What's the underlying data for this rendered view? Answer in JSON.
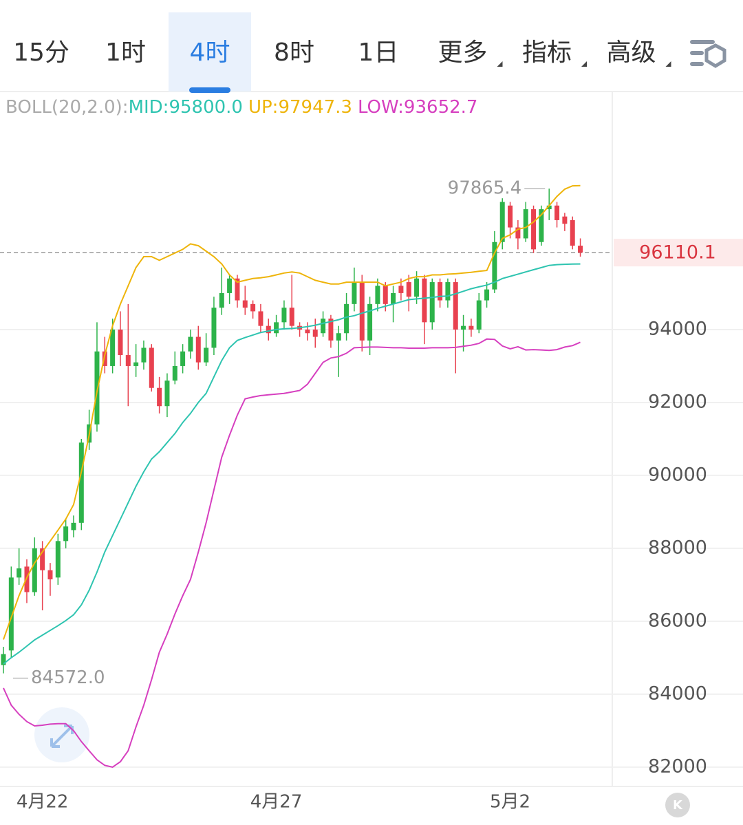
{
  "tabs": [
    "15分",
    "1时",
    "4时",
    "8时",
    "1日",
    "更多",
    "指标",
    "高级"
  ],
  "selected_tab": "4时",
  "chart_data": {
    "type": "candlestick",
    "indicator": "BOLL(20,2.0):",
    "open": [
      84800,
      85200,
      87200,
      87500,
      86800,
      88000,
      87400,
      87200,
      88200,
      88500,
      88700,
      90900,
      91400,
      93400,
      93000,
      94000,
      93300,
      93000,
      93100,
      93500,
      92400,
      91900,
      92600,
      93000,
      93400,
      93800,
      93100,
      93500,
      94600,
      95000,
      95400,
      94800,
      94700,
      94500,
      94100,
      93900,
      94200,
      94600,
      94100,
      94000,
      94000,
      93900,
      94300,
      93700,
      93900,
      94700,
      95300,
      93700,
      94700,
      95200,
      94700,
      95200,
      95300,
      94900,
      95400,
      94200,
      95300,
      94800,
      95300,
      94000,
      94100,
      94000,
      94800,
      95100,
      96400,
      97400,
      96800,
      96500,
      97300,
      96400,
      97300,
      97400,
      97100,
      97000,
      96300
    ],
    "high": [
      85300,
      87500,
      88000,
      87700,
      88300,
      88200,
      87600,
      88400,
      88800,
      88900,
      91000,
      91800,
      94200,
      93800,
      94300,
      94500,
      94700,
      93600,
      93700,
      93600,
      92700,
      92800,
      93400,
      93600,
      94000,
      94100,
      93900,
      94900,
      95700,
      95500,
      95500,
      95200,
      94800,
      94700,
      94300,
      94400,
      94800,
      95500,
      94200,
      94200,
      94300,
      94500,
      94400,
      94100,
      95000,
      95700,
      95500,
      94900,
      95400,
      95300,
      95200,
      95400,
      95500,
      95600,
      95500,
      95400,
      95400,
      95400,
      95400,
      94400,
      94300,
      95000,
      95300,
      96700,
      97600,
      97500,
      97000,
      97500,
      97400,
      97400,
      97865.4,
      97500,
      97200,
      97100,
      96500
    ],
    "low": [
      84572,
      85000,
      87000,
      86500,
      86700,
      86300,
      86700,
      87000,
      88000,
      88300,
      88500,
      90700,
      91200,
      92800,
      92800,
      93000,
      91900,
      92700,
      92900,
      92300,
      91700,
      91600,
      92500,
      92800,
      93200,
      92900,
      93000,
      93300,
      94400,
      94700,
      94600,
      94400,
      94300,
      93900,
      93700,
      93800,
      94000,
      94000,
      93800,
      93700,
      93500,
      93800,
      93500,
      92700,
      93700,
      94500,
      93400,
      93300,
      94500,
      94500,
      94200,
      94800,
      94500,
      94700,
      93600,
      94000,
      94600,
      94600,
      92800,
      93400,
      93800,
      93900,
      94600,
      95000,
      96200,
      96500,
      96200,
      96400,
      96100,
      96300,
      97000,
      96800,
      96700,
      96200,
      96000
    ],
    "close": [
      85100,
      87200,
      87450,
      86800,
      88000,
      87400,
      87150,
      88200,
      88600,
      88700,
      90900,
      91400,
      93400,
      93000,
      94000,
      93300,
      93000,
      93100,
      93500,
      92400,
      91900,
      92600,
      93000,
      93400,
      93800,
      93100,
      93500,
      94600,
      95000,
      95400,
      94800,
      94600,
      94500,
      94100,
      93900,
      94200,
      94600,
      94100,
      94000,
      93900,
      93800,
      94300,
      93700,
      93900,
      94700,
      95300,
      93700,
      94700,
      95200,
      94700,
      95000,
      95000,
      94900,
      95400,
      94200,
      95300,
      94800,
      95300,
      94000,
      94100,
      94000,
      94800,
      95100,
      96400,
      97500,
      96800,
      96500,
      97300,
      96200,
      97300,
      97400,
      97000,
      96900,
      96300,
      96110.1
    ],
    "up_color": "#2db34a",
    "down_color": "#e8414f",
    "series": [
      {
        "name": "MID:95800.0",
        "color": "#2ec4b0",
        "values": [
          84830,
          85000,
          85150,
          85320,
          85490,
          85620,
          85750,
          85880,
          86020,
          86180,
          86450,
          86850,
          87350,
          87900,
          88350,
          88800,
          89250,
          89700,
          90100,
          90450,
          90650,
          90900,
          91150,
          91450,
          91700,
          92000,
          92250,
          92700,
          93150,
          93500,
          93700,
          93780,
          93850,
          93920,
          93960,
          94000,
          94020,
          94030,
          94050,
          94080,
          94120,
          94170,
          94220,
          94270,
          94340,
          94380,
          94450,
          94510,
          94580,
          94640,
          94700,
          94760,
          94820,
          94840,
          94860,
          94880,
          94910,
          94920,
          94980,
          95050,
          95120,
          95170,
          95220,
          95300,
          95400,
          95460,
          95520,
          95580,
          95640,
          95700,
          95760,
          95780,
          95790,
          95795,
          95800
        ]
      },
      {
        "name": "UP:97947.3",
        "color": "#eeb40a",
        "values": [
          85500,
          86100,
          86700,
          87200,
          87600,
          87900,
          88200,
          88500,
          88800,
          89200,
          90100,
          91100,
          92300,
          93300,
          94100,
          94700,
          95200,
          95700,
          96000,
          96000,
          95900,
          96000,
          96100,
          96200,
          96350,
          96300,
          96150,
          96000,
          95800,
          95500,
          95300,
          95350,
          95400,
          95420,
          95450,
          95500,
          95550,
          95580,
          95550,
          95450,
          95350,
          95300,
          95250,
          95250,
          95300,
          95300,
          95300,
          95300,
          95300,
          95200,
          95250,
          95300,
          95400,
          95450,
          95450,
          95500,
          95500,
          95520,
          95530,
          95550,
          95570,
          95600,
          95620,
          96100,
          96500,
          96600,
          96750,
          96800,
          96950,
          97150,
          97400,
          97650,
          97850,
          97940,
          97947.3
        ]
      },
      {
        "name": "LOW:93652.7",
        "color": "#d63fbf",
        "values": [
          84170,
          83700,
          83450,
          83250,
          83130,
          83150,
          83180,
          83190,
          83190,
          83000,
          82700,
          82450,
          82200,
          82050,
          82000,
          82150,
          82450,
          83100,
          83700,
          84400,
          85150,
          85650,
          86200,
          86700,
          87150,
          87900,
          88700,
          89600,
          90500,
          91100,
          91650,
          92100,
          92150,
          92190,
          92210,
          92230,
          92250,
          92290,
          92330,
          92500,
          92800,
          93100,
          93220,
          93260,
          93350,
          93500,
          93510,
          93520,
          93520,
          93510,
          93500,
          93500,
          93490,
          93490,
          93490,
          93500,
          93500,
          93500,
          93510,
          93540,
          93570,
          93620,
          93740,
          93730,
          93550,
          93470,
          93530,
          93440,
          93450,
          93440,
          93430,
          93450,
          93520,
          93560,
          93652.7
        ]
      }
    ],
    "max_label": "97865.4",
    "min_label": "84572.0",
    "last_price": {
      "value": 96110.1,
      "label": "96110.1"
    },
    "ylim": [
      81470,
      100490
    ],
    "yticks": [
      82000,
      84000,
      86000,
      88000,
      90000,
      92000,
      94000
    ],
    "xlim": [
      -0.44,
      78.1
    ],
    "xticks": [
      {
        "value": 5,
        "label": "4月22"
      },
      {
        "value": 35,
        "label": "4月27"
      },
      {
        "value": 65,
        "label": "5月2"
      }
    ],
    "grid": true
  }
}
